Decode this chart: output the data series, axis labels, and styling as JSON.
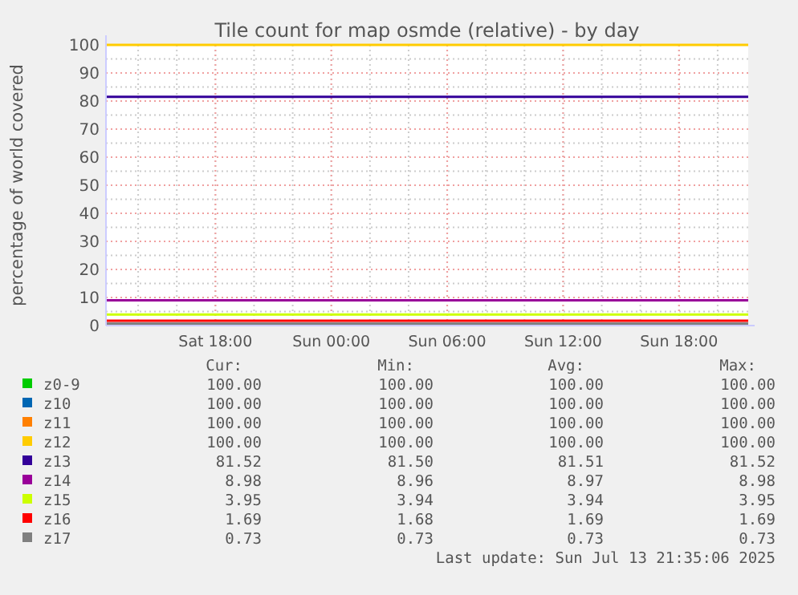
{
  "chart_data": {
    "type": "line",
    "title": "Tile count for map osmde (relative) - by day",
    "ylabel": "percentage of world covered",
    "x": [
      "2025-07-12T12:20",
      "2025-07-13T21:35"
    ],
    "xlim": [
      "2025-07-12T12:20",
      "2025-07-13T21:35"
    ],
    "xticks": [
      {
        "value": "2025-07-12T18:00",
        "label": "Sat 18:00"
      },
      {
        "value": "2025-07-13T00:00",
        "label": "Sun 00:00"
      },
      {
        "value": "2025-07-13T06:00",
        "label": "Sun 06:00"
      },
      {
        "value": "2025-07-13T12:00",
        "label": "Sun 12:00"
      },
      {
        "value": "2025-07-13T18:00",
        "label": "Sun 18:00"
      }
    ],
    "ylim": [
      0,
      100
    ],
    "yticks": [
      0,
      10,
      20,
      30,
      40,
      50,
      60,
      70,
      80,
      90,
      100
    ],
    "grid": true,
    "legend": "bottom",
    "line_style": "solid",
    "series": [
      {
        "name": "z0-9",
        "color": "#00cc00",
        "values": [
          null,
          null
        ]
      },
      {
        "name": "z10",
        "color": "#0066b3",
        "values": [
          null,
          null
        ]
      },
      {
        "name": "z11",
        "color": "#ff8000",
        "values": [
          null,
          null
        ]
      },
      {
        "name": "z12",
        "color": "#ffcc00",
        "values": [
          100,
          100
        ]
      },
      {
        "name": "z13",
        "color": "#330099",
        "values": [
          81.5,
          81.5
        ]
      },
      {
        "name": "z14",
        "color": "#990099",
        "values": [
          9.0,
          9.0
        ]
      },
      {
        "name": "z15",
        "color": "#ccff00",
        "values": [
          3.9,
          3.9
        ]
      },
      {
        "name": "z16",
        "color": "#ff0000",
        "values": [
          1.7,
          1.7
        ]
      },
      {
        "name": "z17",
        "color": "#808080",
        "values": [
          0.7,
          0.7
        ]
      }
    ],
    "annotations": [
      "Cur:",
      "Min:",
      "Avg:",
      "Max:",
      "100.00",
      "100.00",
      "100.00",
      "100.00",
      "100.00",
      "100.00",
      "100.00",
      "100.00",
      "100.00",
      "100.00",
      "100.00",
      "100.00",
      "100.00",
      "100.00",
      "100.00",
      "100.00",
      "81.52",
      "81.50",
      "81.51",
      "81.52",
      "8.98",
      "8.96",
      "8.97",
      "8.98",
      "3.95",
      "3.94",
      "3.94",
      "3.95",
      "1.69",
      "1.68",
      "1.69",
      "1.69",
      "0.73",
      "0.73",
      "0.73",
      "0.73",
      "Last update: Sun Jul 13 21:35:06 2025"
    ]
  }
}
